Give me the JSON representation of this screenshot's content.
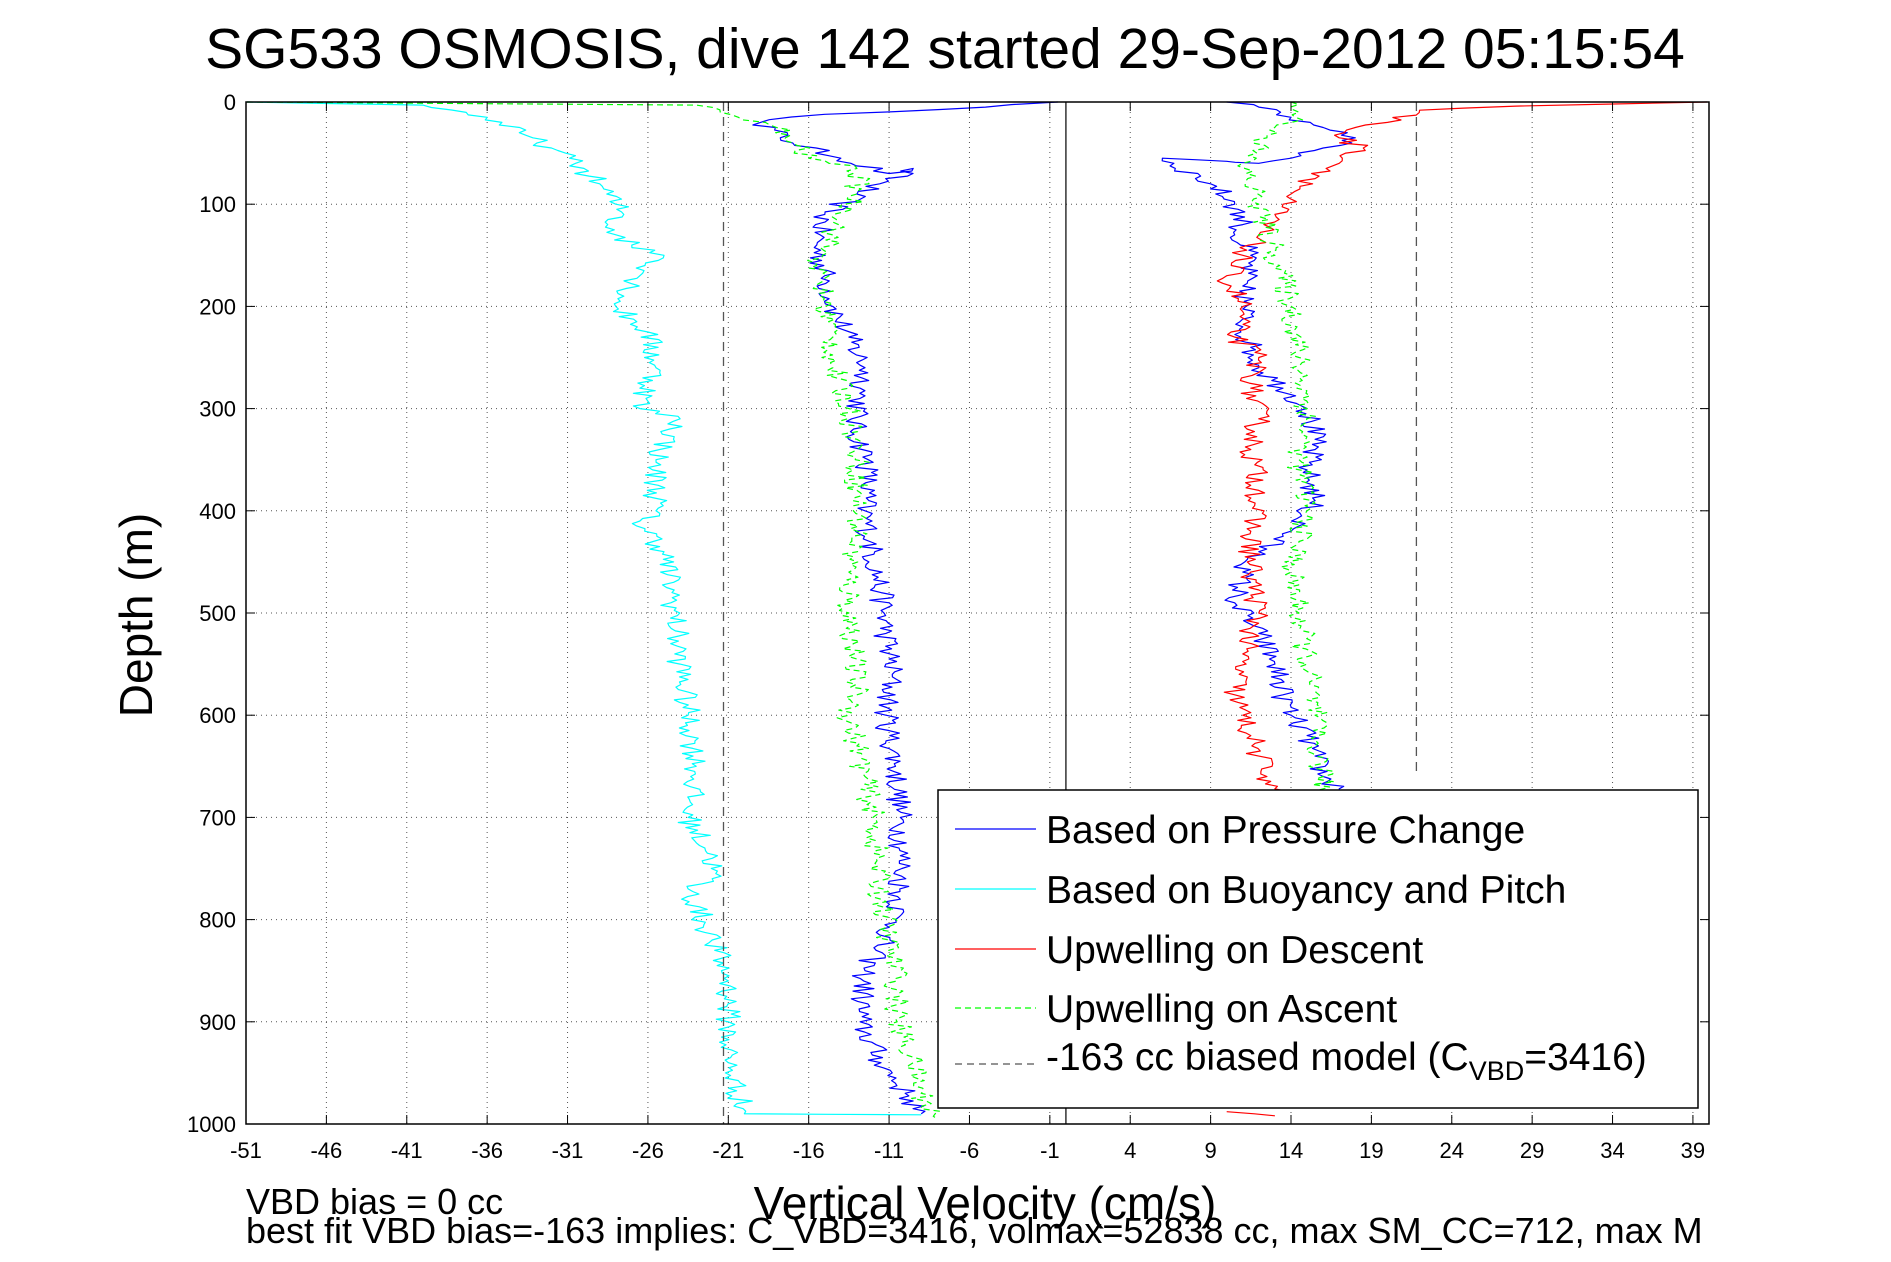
{
  "chart_data": {
    "type": "line",
    "title": "SG533 OSMOSIS, dive 142 started 29-Sep-2012 05:15:54",
    "xlabel": "Vertical Velocity (cm/s)",
    "ylabel": "Depth (m)",
    "xlim": [
      -51,
      40
    ],
    "ylim": [
      0,
      1000
    ],
    "y_reversed": true,
    "grid": true,
    "xticks": [
      -51,
      -46,
      -41,
      -36,
      -31,
      -26,
      -21,
      -16,
      -11,
      -6,
      -1,
      4,
      9,
      14,
      19,
      24,
      29,
      34,
      39
    ],
    "yticks": [
      0,
      100,
      200,
      300,
      400,
      500,
      600,
      700,
      800,
      900,
      1000
    ],
    "legend_position": "bottom-right",
    "series": [
      {
        "name": "Based on Pressure Change",
        "color": "#0000ff",
        "dash": "solid",
        "profiles": [
          {
            "x": [
              -0.5,
              -5,
              -15,
              -19,
              -17,
              -14,
              -11,
              -9.5,
              -13,
              -15,
              -15.5,
              -15,
              -14.5,
              -13.5,
              -12.5,
              -12.8,
              -13.2,
              -12.3,
              -12.5,
              -12.2,
              -11.5,
              -11.2,
              -10.8,
              -11.2,
              -10.6,
              -10.3,
              -10.2,
              -10.6,
              -12.5,
              -12.8,
              -11.5,
              -10,
              -9
            ],
            "y": [
              0,
              5,
              12,
              20,
              40,
              55,
              70,
              65,
              90,
              110,
              140,
              170,
              200,
              230,
              260,
              290,
              320,
              350,
              400,
              430,
              480,
              520,
              560,
              600,
              650,
              700,
              750,
              800,
              850,
              900,
              940,
              970,
              990
            ]
          },
          {
            "x": [
              10,
              12,
              14,
              16,
              17.5,
              18,
              16,
              14,
              12,
              10,
              6,
              9,
              10.5,
              11,
              10.5,
              11.5,
              11,
              11.2,
              11,
              11.5,
              12,
              13.5,
              15,
              15.5,
              15,
              15.5,
              14,
              12,
              11,
              10.5,
              12,
              13,
              13.5,
              14,
              15,
              15.5,
              16,
              17,
              17.5
            ],
            "y": [
              0,
              5,
              15,
              25,
              30,
              35,
              45,
              55,
              60,
              58,
              55,
              80,
              100,
              120,
              130,
              150,
              180,
              200,
              220,
              240,
              260,
              280,
              300,
              330,
              360,
              390,
              420,
              440,
              460,
              490,
              520,
              550,
              580,
              600,
              620,
              640,
              660,
              672,
              678
            ]
          }
        ]
      },
      {
        "name": "Based on Buoyancy and Pitch",
        "color": "#00ffff",
        "dash": "solid",
        "profiles": [
          {
            "x": [
              -51,
              -40,
              -36,
              -34,
              -32,
              -30.5,
              -29,
              -28,
              -27.5,
              -28.5,
              -27,
              -25,
              -26.5,
              -27.5,
              -28,
              -26,
              -25.5,
              -26.5,
              -24,
              -25.5,
              -25.5,
              -26.5,
              -25,
              -24.5,
              -24,
              -23.5,
              -23,
              -23.5,
              -22,
              -22,
              -23.5,
              -22,
              -21,
              -21,
              -21,
              -20,
              -9
            ],
            "y": [
              0,
              3,
              15,
              30,
              45,
              60,
              80,
              100,
              110,
              120,
              140,
              150,
              170,
              190,
              200,
              225,
              260,
              300,
              310,
              350,
              400,
              410,
              440,
              480,
              550,
              600,
              650,
              700,
              740,
              760,
              770,
              820,
              860,
              900,
              940,
              990,
              991
            ]
          }
        ]
      },
      {
        "name": "Upwelling on Descent",
        "color": "#ff0000",
        "dash": "solid",
        "profiles": [
          {
            "x": [
              40,
              28,
              22,
              20,
              18,
              17,
              18.5,
              17,
              15.5,
              14,
              13.5,
              13,
              12,
              11,
              10,
              11,
              10.5,
              12,
              11.5,
              12,
              11.5,
              12,
              11.5,
              11.5,
              12,
              11,
              10.5,
              11,
              11.5,
              12,
              12.5,
              13,
              13.5
            ],
            "y": [
              0,
              4,
              8,
              20,
              25,
              35,
              45,
              60,
              75,
              90,
              100,
              110,
              130,
              150,
              170,
              200,
              230,
              250,
              280,
              310,
              340,
              380,
              420,
              460,
              500,
              540,
              580,
              600,
              620,
              640,
              660,
              672,
              678
            ]
          },
          {
            "x": [
              10,
              13
            ],
            "y": [
              988,
              992
            ]
          }
        ]
      },
      {
        "name": "Upwelling on Ascent",
        "color": "#00ff00",
        "dash": "dashed",
        "profiles": [
          {
            "x": [
              -51,
              -23,
              -21.5,
              -18,
              -17,
              -16,
              -13,
              -13,
              -14.5,
              -15.5,
              -15,
              -14.5,
              -14.5,
              -13.5,
              -13,
              -13,
              -13,
              -13.5,
              -13.5,
              -13.2,
              -13,
              -13.5,
              -13,
              -12.5,
              -12,
              -11.8,
              -11.5,
              -11,
              -10.5,
              -10.5,
              -9.5,
              -9,
              -8
            ],
            "y": [
              0,
              3,
              10,
              25,
              40,
              55,
              65,
              90,
              130,
              160,
              200,
              230,
              260,
              300,
              340,
              380,
              420,
              460,
              500,
              540,
              580,
              600,
              630,
              660,
              700,
              740,
              780,
              820,
              860,
              900,
              940,
              970,
              995
            ]
          },
          {
            "x": [
              14,
              14.5,
              14,
              12.5,
              11,
              12,
              13,
              14,
              14.5,
              15,
              14.5,
              15,
              14.5,
              14,
              14.5,
              15,
              15.5,
              15.5,
              16,
              16
            ],
            "y": [
              0,
              10,
              20,
              35,
              60,
              100,
              150,
              200,
              250,
              300,
              350,
              400,
              430,
              460,
              500,
              550,
              600,
              630,
              660,
              678
            ]
          }
        ]
      },
      {
        "name": "-163 cc biased model (C_VBD=3416)",
        "color": "#555555",
        "dash": "dashed",
        "profiles": [
          {
            "x": [
              -21.3,
              -21.3
            ],
            "y": [
              0,
              1000
            ]
          },
          {
            "x": [
              21.8,
              21.8
            ],
            "y": [
              0,
              655
            ]
          }
        ]
      }
    ],
    "reference_line": {
      "x": 0,
      "color": "#000000"
    },
    "legend": {
      "entries": [
        {
          "label": "Based on Pressure Change",
          "color": "#0000ff",
          "dash": "solid"
        },
        {
          "label": "Based on Buoyancy and Pitch",
          "color": "#00ffff",
          "dash": "solid"
        },
        {
          "label": "Upwelling on Descent",
          "color": "#ff0000",
          "dash": "solid"
        },
        {
          "label": "Upwelling on Ascent",
          "color": "#00ff00",
          "dash": "dashed"
        },
        {
          "label_pre": "-163 cc biased model (C",
          "label_sub": "VBD",
          "label_post": "=3416)",
          "color": "#555555",
          "dash": "dashed"
        }
      ]
    },
    "annotations": [
      "VBD bias = 0 cc",
      "best fit VBD bias=-163 implies: C_VBD=3416, volmax=52838 cc, max SM_CC=712, max M"
    ]
  }
}
